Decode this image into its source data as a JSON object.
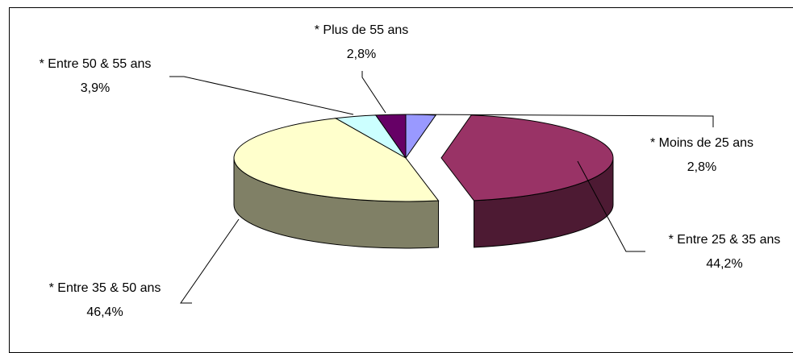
{
  "chart_data": {
    "type": "pie",
    "title": "",
    "slices": [
      {
        "label": "* Moins de 25 ans",
        "value_label": "2,8%",
        "value": 2.8,
        "color": "#9999ff"
      },
      {
        "label": "* Entre 25 & 35 ans",
        "value_label": "44,2%",
        "value": 44.2,
        "color": "#993366"
      },
      {
        "label": "* Entre 35 & 50 ans",
        "value_label": "46,4%",
        "value": 46.4,
        "color": "#ffffcc"
      },
      {
        "label": "* Entre 50 & 55 ans",
        "value_label": "3,9%",
        "value": 3.9,
        "color": "#ccffff"
      },
      {
        "label": "* Plus de 55 ans",
        "value_label": "2,8%",
        "value": 2.8,
        "color": "#660066"
      }
    ],
    "legend": "none",
    "style": "3d-pie"
  }
}
